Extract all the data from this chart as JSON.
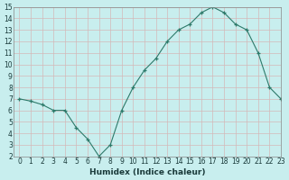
{
  "x": [
    0,
    1,
    2,
    3,
    4,
    5,
    6,
    7,
    8,
    9,
    10,
    11,
    12,
    13,
    14,
    15,
    16,
    17,
    18,
    19,
    20,
    21,
    22,
    23
  ],
  "y": [
    7.0,
    6.8,
    6.5,
    6.0,
    6.0,
    4.5,
    3.5,
    2.0,
    3.0,
    6.0,
    8.0,
    9.5,
    10.5,
    12.0,
    13.0,
    13.5,
    14.5,
    15.0,
    14.5,
    13.5,
    13.0,
    11.0,
    8.0,
    7.0
  ],
  "xlabel": "Humidex (Indice chaleur)",
  "ylim": [
    2,
    15
  ],
  "xlim": [
    -0.5,
    23
  ],
  "line_color": "#2d7a6a",
  "marker_color": "#2d7a6a",
  "bg_color": "#c8eeee",
  "grid_h_color": "#d4b8b8",
  "grid_v_color": "#d4b8b8",
  "yticks": [
    2,
    3,
    4,
    5,
    6,
    7,
    8,
    9,
    10,
    11,
    12,
    13,
    14,
    15
  ],
  "xticks": [
    0,
    1,
    2,
    3,
    4,
    5,
    6,
    7,
    8,
    9,
    10,
    11,
    12,
    13,
    14,
    15,
    16,
    17,
    18,
    19,
    20,
    21,
    22,
    23
  ],
  "tick_fontsize": 5.5,
  "xlabel_fontsize": 6.5
}
